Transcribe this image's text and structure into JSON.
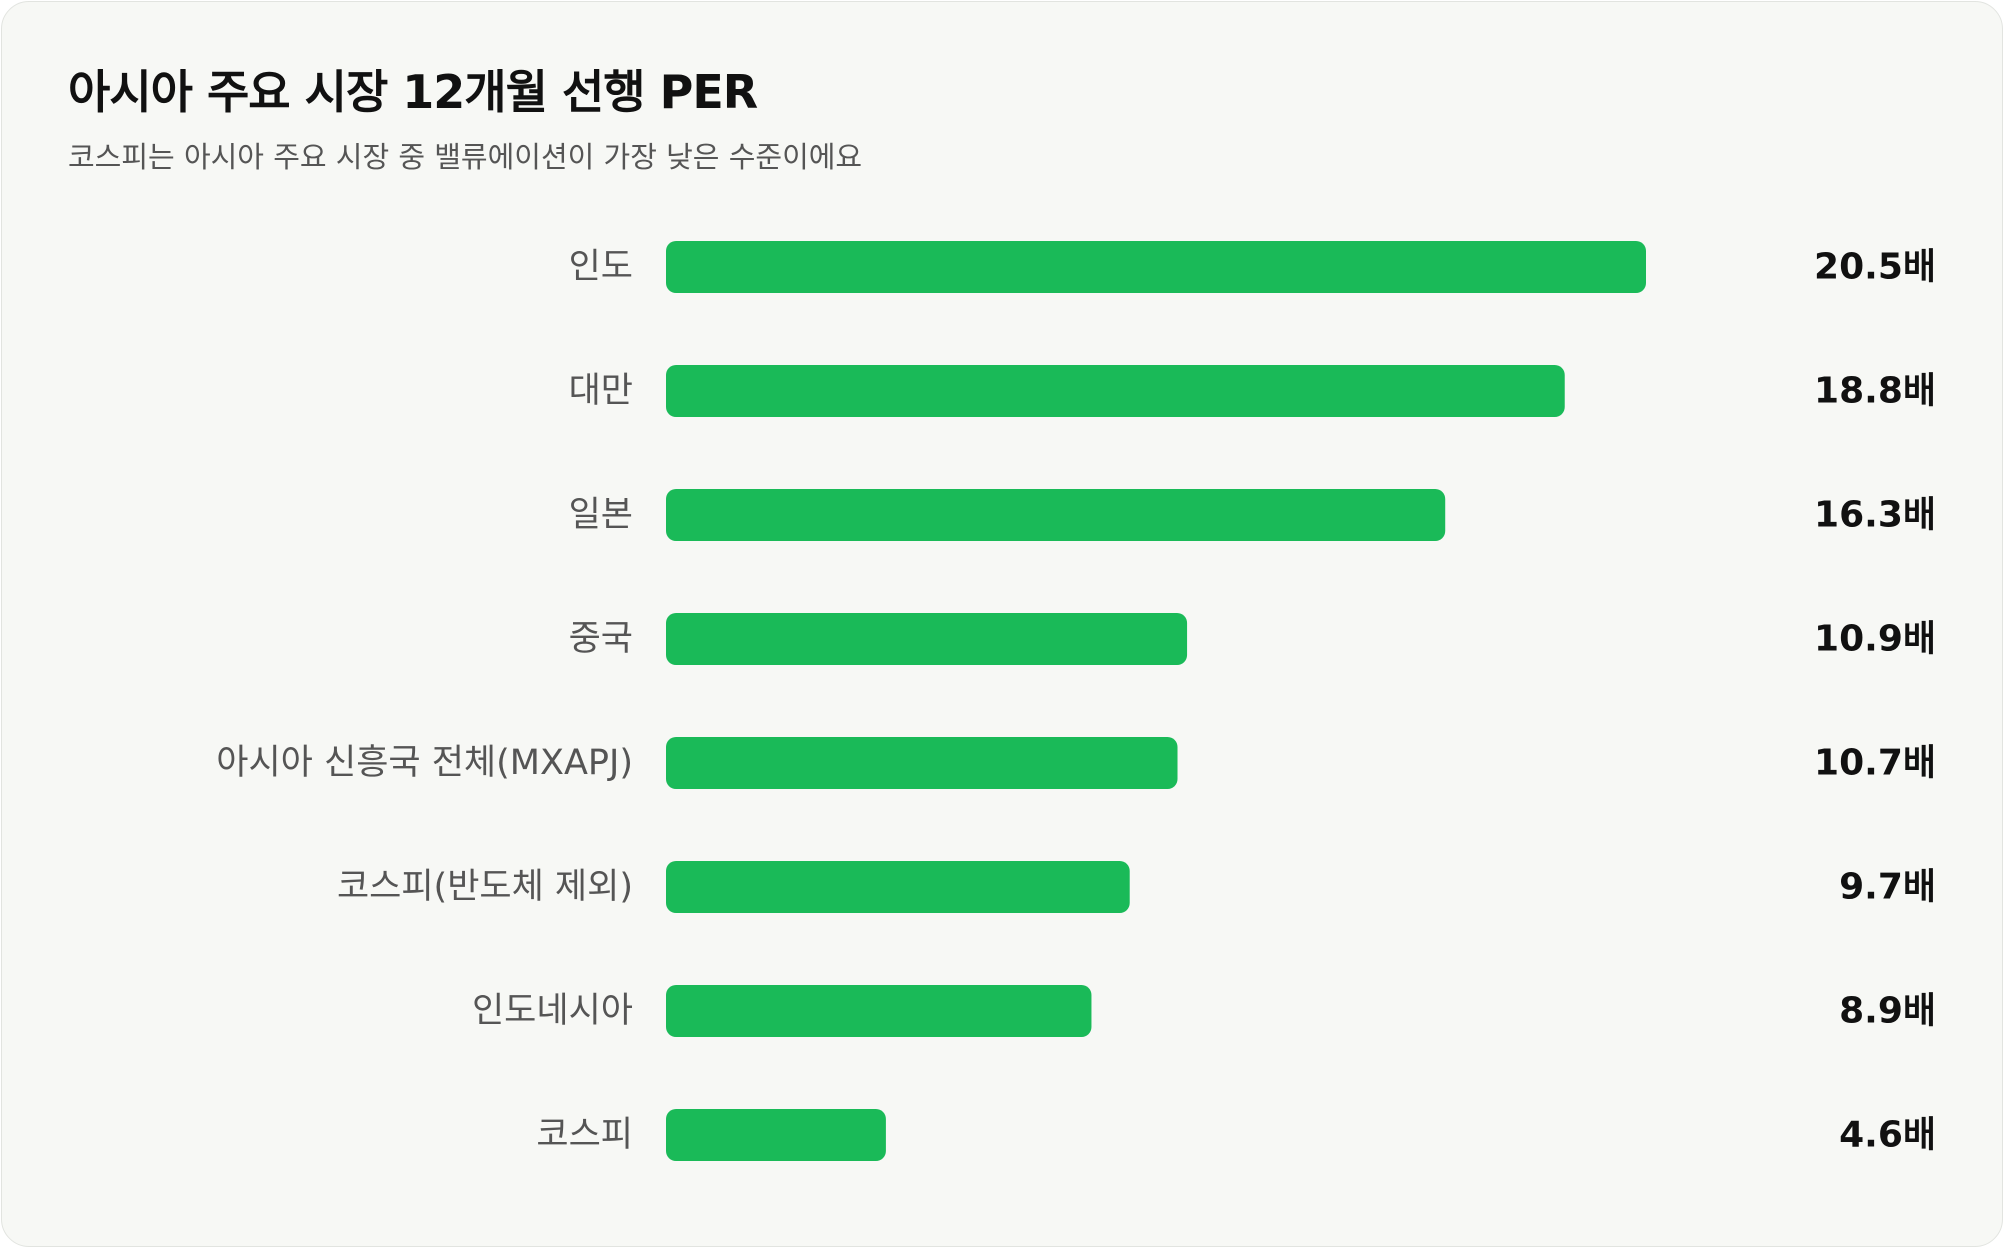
{
  "title": "아시아 주요 시장 12개월 선행 PER",
  "subtitle": "코스피는 아시아 주요 시장 중 밸류에이션이 가장 낮은 수준이에요",
  "colors": {
    "bar": "#1aba58",
    "background": "#f7f8f5"
  },
  "chart_data": {
    "type": "bar",
    "orientation": "horizontal",
    "title": "아시아 주요 시장 12개월 선행 PER",
    "subtitle": "코스피는 아시아 주요 시장 중 밸류에이션이 가장 낮은 수준이에요",
    "categories": [
      "인도",
      "대만",
      "일본",
      "중국",
      "아시아 신흥국 전체(MXAPJ)",
      "코스피(반도체 제외)",
      "인도네시아",
      "코스피"
    ],
    "values": [
      20.5,
      18.8,
      16.3,
      10.9,
      10.7,
      9.7,
      8.9,
      4.6
    ],
    "value_labels": [
      "20.5배",
      "18.8배",
      "16.3배",
      "10.9배",
      "10.7배",
      "9.7배",
      "8.9배",
      "4.6배"
    ],
    "xlim": [
      0,
      20.5
    ],
    "grid": false,
    "legend": "none"
  }
}
